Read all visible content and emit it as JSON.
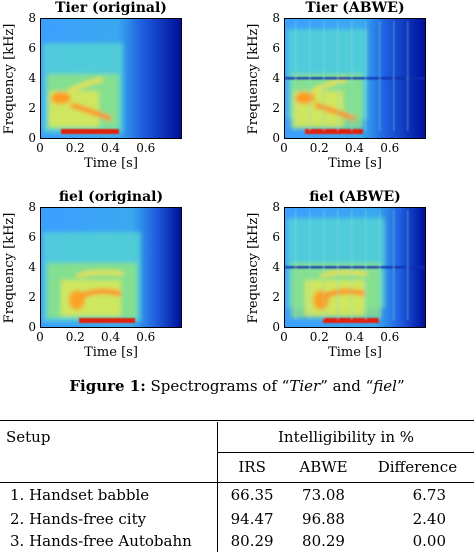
{
  "panels": [
    {
      "id": "tier-original",
      "title": "Tier (original)",
      "ylabel": "Frequency [kHz]",
      "xlabel": "Time [s]",
      "yticks": [
        "8",
        "6",
        "4",
        "2",
        "0"
      ],
      "xticks": [
        "0",
        "0.2",
        "0.4",
        "0.6"
      ],
      "kind": "original",
      "word": "tier"
    },
    {
      "id": "tier-abwe",
      "title": "Tier (ABWE)",
      "ylabel": "Frequency [kHz]",
      "xlabel": "Time [s]",
      "yticks": [
        "8",
        "6",
        "4",
        "2",
        "0"
      ],
      "xticks": [
        "0",
        "0.2",
        "0.4",
        "0.6"
      ],
      "kind": "abwe",
      "word": "tier"
    },
    {
      "id": "fiel-original",
      "title": "fiel (original)",
      "ylabel": "Frequency [kHz]",
      "xlabel": "Time [s]",
      "yticks": [
        "8",
        "6",
        "4",
        "2",
        "0"
      ],
      "xticks": [
        "0",
        "0.2",
        "0.4",
        "0.6"
      ],
      "kind": "original",
      "word": "fiel"
    },
    {
      "id": "fiel-abwe",
      "title": "fiel (ABWE)",
      "ylabel": "Frequency [kHz]",
      "xlabel": "Time [s]",
      "yticks": [
        "8",
        "6",
        "4",
        "2",
        "0"
      ],
      "xticks": [
        "0",
        "0.2",
        "0.4",
        "0.6"
      ],
      "kind": "abwe",
      "word": "fiel"
    }
  ],
  "caption": {
    "label": "Figure 1:",
    "text_a": " Spectrograms of “",
    "word1": "Tier",
    "text_b": "” and “",
    "word2": "fiel",
    "text_c": "”"
  },
  "table": {
    "col_setup": "Setup",
    "col_group": "Intelligibility in %",
    "sub_headers": [
      "IRS",
      "ABWE",
      "Difference"
    ],
    "rows": [
      {
        "setup": "1.  Handset babble",
        "irs": "66.35",
        "abwe": "73.08",
        "diff": "6.73"
      },
      {
        "setup": "2.  Hands-free city",
        "irs": "94.47",
        "abwe": "96.88",
        "diff": "2.40"
      },
      {
        "setup": "3.  Hands-free Autobahn",
        "irs": "80.29",
        "abwe": "80.29",
        "diff": "0.00"
      }
    ]
  }
}
